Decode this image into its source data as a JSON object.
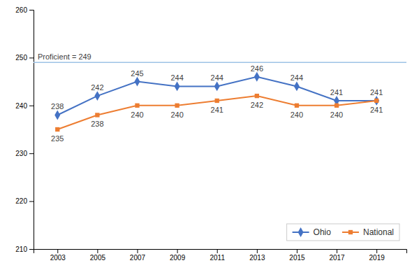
{
  "chart_data": {
    "type": "line",
    "x": [
      2003,
      2005,
      2007,
      2009,
      2011,
      2013,
      2015,
      2017,
      2019
    ],
    "series": [
      {
        "name": "Ohio",
        "color": "#4472C4",
        "marker": "diamond",
        "values": [
          238,
          242,
          245,
          244,
          244,
          246,
          244,
          241,
          241
        ]
      },
      {
        "name": "National",
        "color": "#ED7D31",
        "marker": "square",
        "values": [
          235,
          238,
          240,
          240,
          241,
          242,
          240,
          240,
          241
        ]
      }
    ],
    "xlim": [
      2001.8,
      2020.5
    ],
    "xticks": [
      2003,
      2005,
      2007,
      2009,
      2011,
      2013,
      2015,
      2017,
      2019
    ],
    "ylim": [
      210,
      260
    ],
    "yticks": [
      210,
      220,
      230,
      240,
      250,
      260
    ],
    "annotations": [
      {
        "y": 249,
        "text": "Proficient = 249",
        "color": "#9DC3E6"
      }
    ],
    "data_labels": true,
    "legend": "lower right",
    "grid": false
  }
}
